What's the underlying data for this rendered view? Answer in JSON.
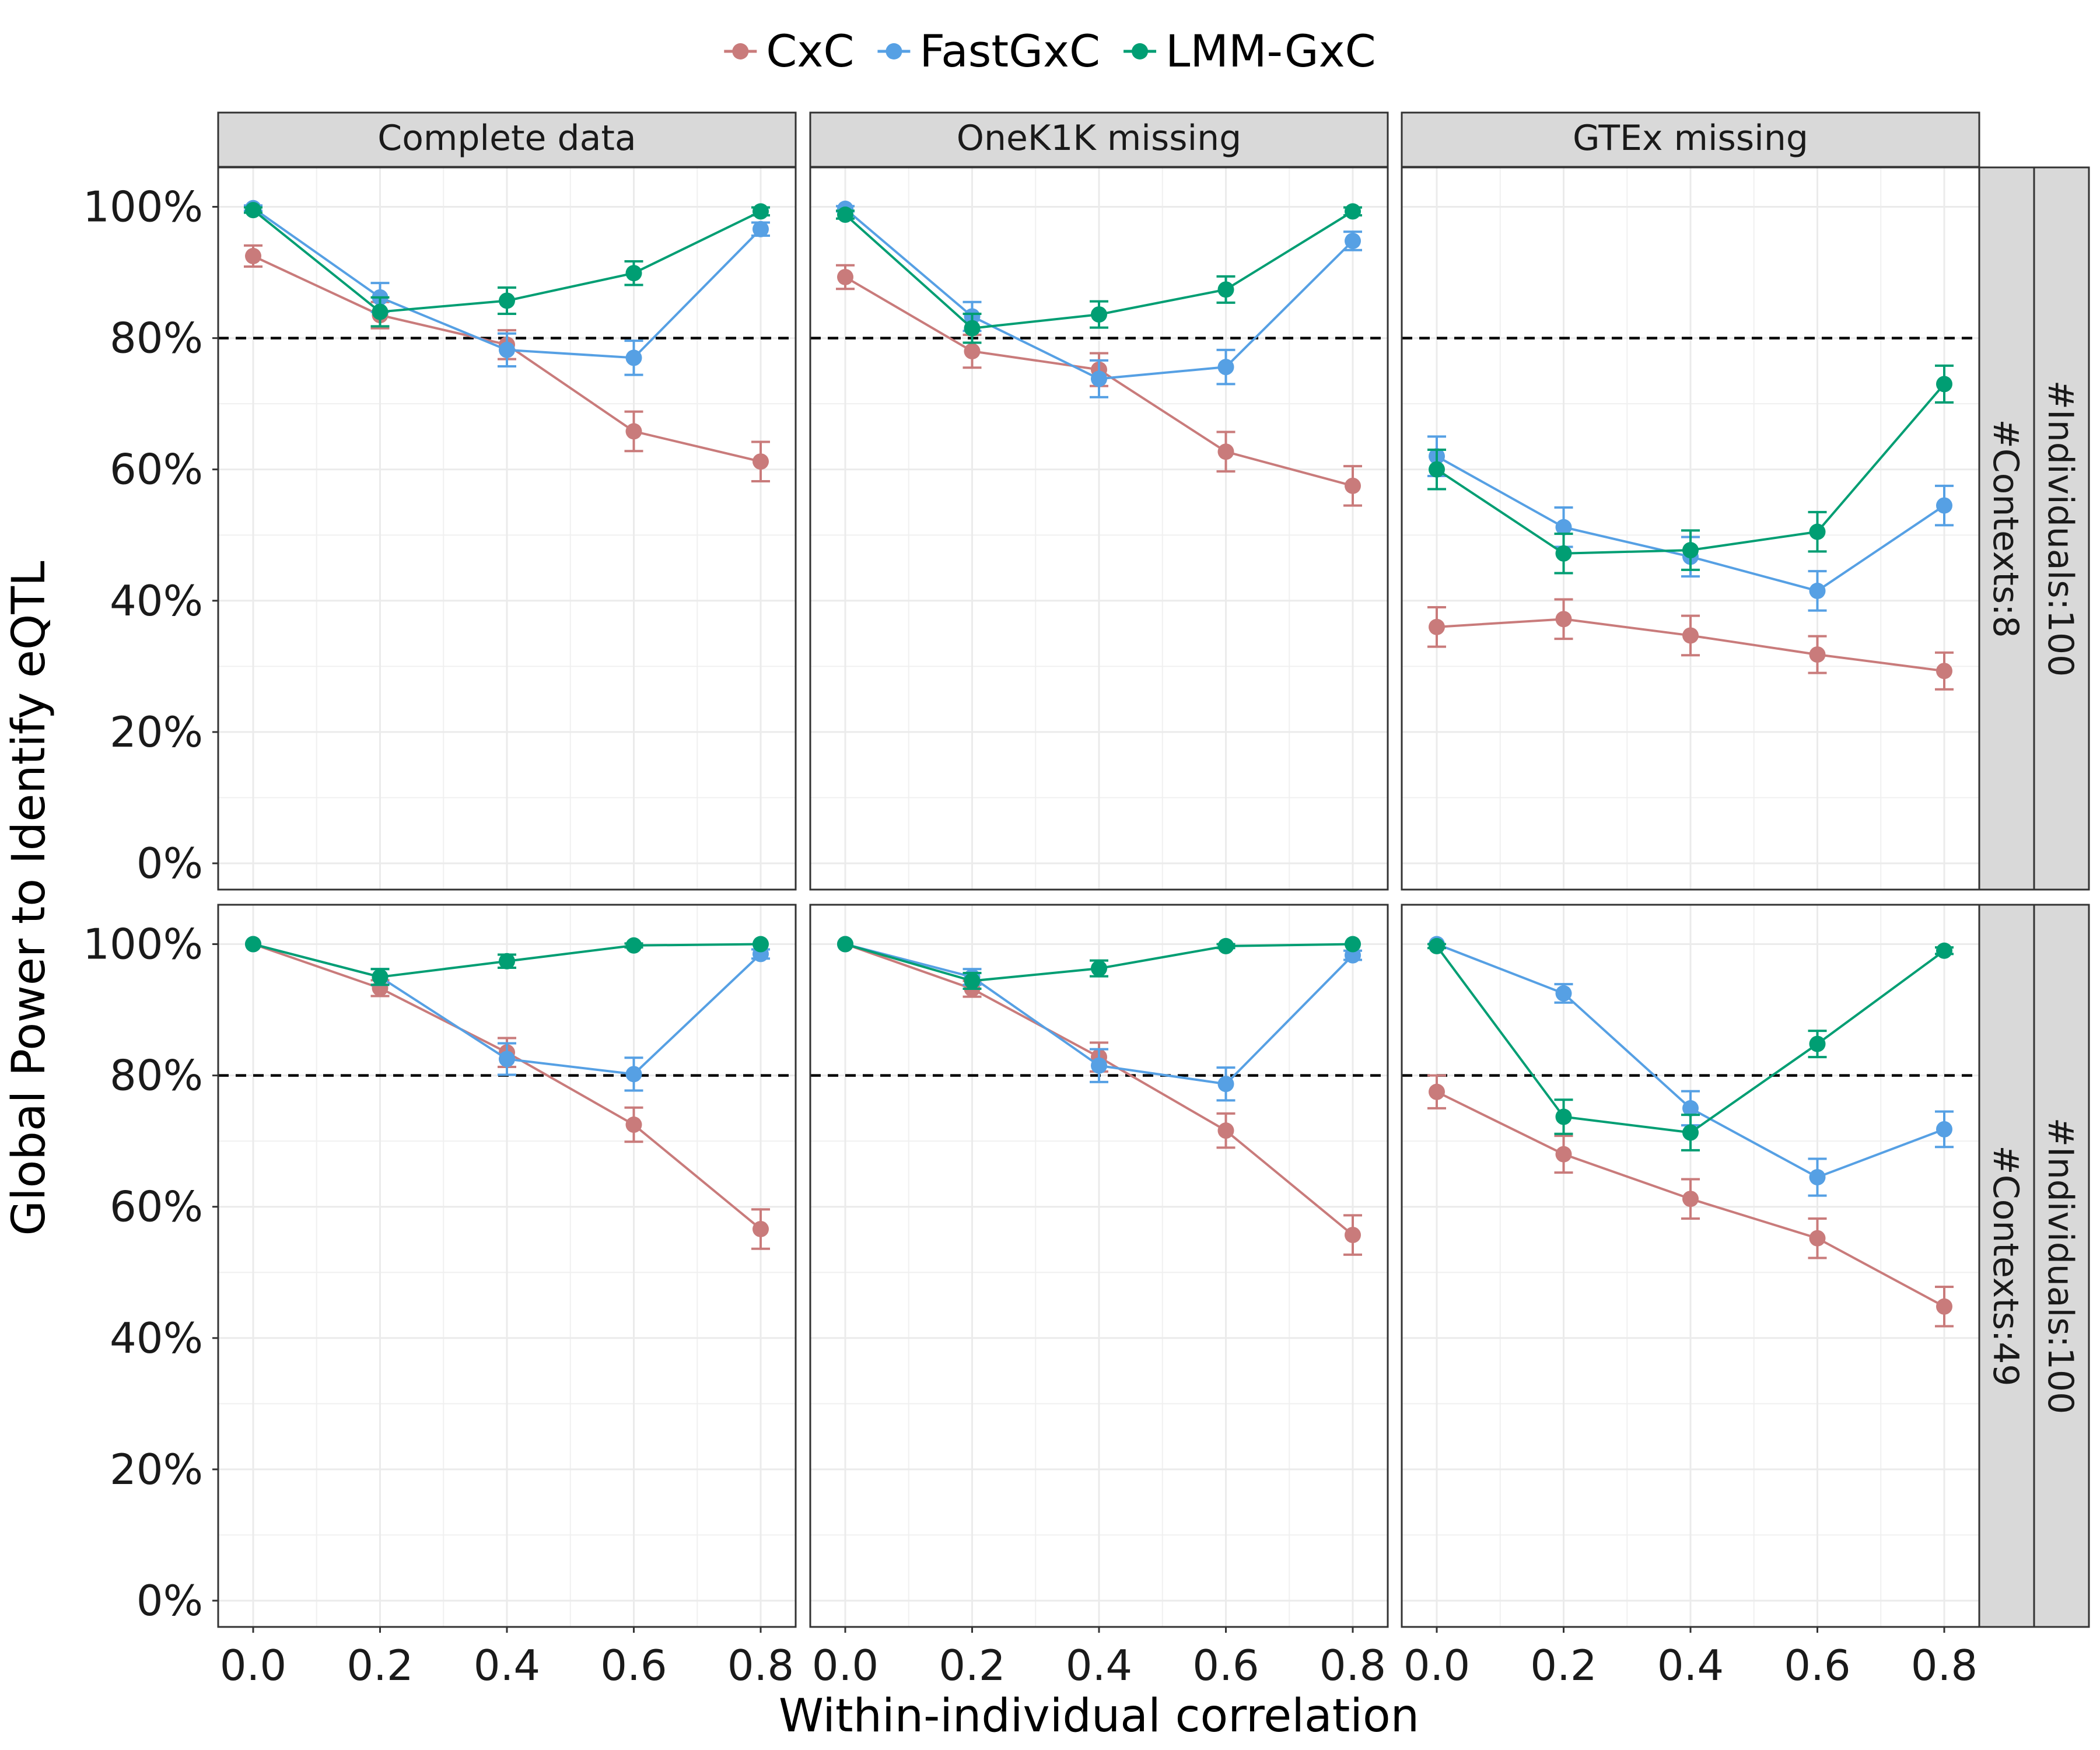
{
  "legend": [
    {
      "label": "CxC",
      "color": "#C97B7B"
    },
    {
      "label": "FastGxC",
      "color": "#56A0E4"
    },
    {
      "label": "LMM-GxC",
      "color": "#009E73"
    }
  ],
  "axes": {
    "ylabel": "Global Power to Identify eQTL",
    "xlabel": "Within-individual correlation",
    "yticks": [
      "0%",
      "20%",
      "40%",
      "60%",
      "80%",
      "100%"
    ],
    "xticks": [
      "0.0",
      "0.2",
      "0.4",
      "0.6",
      "0.8"
    ]
  },
  "facets": {
    "columns": [
      "Complete data",
      "OneK1K missing",
      "GTEx missing"
    ],
    "rows": [
      {
        "contexts": "#Contexts:8",
        "individuals": "#Individuals:100"
      },
      {
        "contexts": "#Contexts:49",
        "individuals": "#Individuals:100"
      }
    ]
  },
  "chart_data": {
    "type": "line",
    "x": [
      0.0,
      0.2,
      0.4,
      0.6,
      0.8
    ],
    "xlabel": "Within-individual correlation",
    "ylabel": "Global Power to Identify eQTL",
    "ylim": [
      -0.04,
      1.06
    ],
    "reference_line": 0.8,
    "grid": true,
    "legend_position": "top",
    "panels": [
      {
        "row": 0,
        "col": 0,
        "series": [
          {
            "name": "CxC",
            "values": [
              0.925,
              0.835,
              0.79,
              0.658,
              0.612
            ],
            "err": [
              0.016,
              0.02,
              0.022,
              0.03,
              0.03
            ]
          },
          {
            "name": "FastGxC",
            "values": [
              0.998,
              0.862,
              0.782,
              0.77,
              0.966
            ],
            "err": [
              0.004,
              0.022,
              0.025,
              0.026,
              0.01
            ]
          },
          {
            "name": "LMM-GxC",
            "values": [
              0.995,
              0.84,
              0.857,
              0.899,
              0.993
            ],
            "err": [
              0.004,
              0.022,
              0.02,
              0.018,
              0.006
            ]
          }
        ]
      },
      {
        "row": 0,
        "col": 1,
        "series": [
          {
            "name": "CxC",
            "values": [
              0.893,
              0.78,
              0.752,
              0.627,
              0.575
            ],
            "err": [
              0.018,
              0.025,
              0.025,
              0.03,
              0.03
            ]
          },
          {
            "name": "FastGxC",
            "values": [
              0.997,
              0.833,
              0.738,
              0.756,
              0.948
            ],
            "err": [
              0.004,
              0.022,
              0.028,
              0.026,
              0.014
            ]
          },
          {
            "name": "LMM-GxC",
            "values": [
              0.988,
              0.815,
              0.836,
              0.874,
              0.993
            ],
            "err": [
              0.006,
              0.022,
              0.02,
              0.02,
              0.006
            ]
          }
        ]
      },
      {
        "row": 0,
        "col": 2,
        "series": [
          {
            "name": "CxC",
            "values": [
              0.36,
              0.372,
              0.347,
              0.318,
              0.293
            ],
            "err": [
              0.03,
              0.03,
              0.03,
              0.028,
              0.028
            ]
          },
          {
            "name": "FastGxC",
            "values": [
              0.62,
              0.512,
              0.467,
              0.415,
              0.545
            ],
            "err": [
              0.03,
              0.03,
              0.03,
              0.03,
              0.03
            ]
          },
          {
            "name": "LMM-GxC",
            "values": [
              0.6,
              0.472,
              0.477,
              0.505,
              0.73
            ],
            "err": [
              0.03,
              0.03,
              0.03,
              0.03,
              0.028
            ]
          }
        ]
      },
      {
        "row": 1,
        "col": 0,
        "series": [
          {
            "name": "CxC",
            "values": [
              1.0,
              0.933,
              0.835,
              0.725,
              0.566
            ],
            "err": [
              0.0,
              0.012,
              0.022,
              0.026,
              0.03
            ]
          },
          {
            "name": "FastGxC",
            "values": [
              1.0,
              0.95,
              0.825,
              0.802,
              0.985
            ],
            "err": [
              0.0,
              0.012,
              0.024,
              0.025,
              0.007
            ]
          },
          {
            "name": "LMM-GxC",
            "values": [
              1.0,
              0.95,
              0.974,
              0.998,
              1.0
            ],
            "err": [
              0.0,
              0.012,
              0.01,
              0.003,
              0.0
            ]
          }
        ]
      },
      {
        "row": 1,
        "col": 1,
        "series": [
          {
            "name": "CxC",
            "values": [
              1.0,
              0.932,
              0.828,
              0.716,
              0.557
            ],
            "err": [
              0.0,
              0.012,
              0.022,
              0.026,
              0.03
            ]
          },
          {
            "name": "FastGxC",
            "values": [
              1.0,
              0.95,
              0.815,
              0.787,
              0.983
            ],
            "err": [
              0.0,
              0.012,
              0.025,
              0.025,
              0.007
            ]
          },
          {
            "name": "LMM-GxC",
            "values": [
              1.0,
              0.944,
              0.963,
              0.997,
              1.0
            ],
            "err": [
              0.0,
              0.012,
              0.012,
              0.003,
              0.0
            ]
          }
        ]
      },
      {
        "row": 1,
        "col": 2,
        "series": [
          {
            "name": "CxC",
            "values": [
              0.775,
              0.68,
              0.612,
              0.552,
              0.448
            ],
            "err": [
              0.025,
              0.028,
              0.03,
              0.03,
              0.03
            ]
          },
          {
            "name": "FastGxC",
            "values": [
              1.0,
              0.925,
              0.75,
              0.645,
              0.718
            ],
            "err": [
              0.0,
              0.014,
              0.026,
              0.028,
              0.027
            ]
          },
          {
            "name": "LMM-GxC",
            "values": [
              0.997,
              0.737,
              0.713,
              0.848,
              0.99
            ],
            "err": [
              0.003,
              0.026,
              0.027,
              0.02,
              0.005
            ]
          }
        ]
      }
    ]
  }
}
